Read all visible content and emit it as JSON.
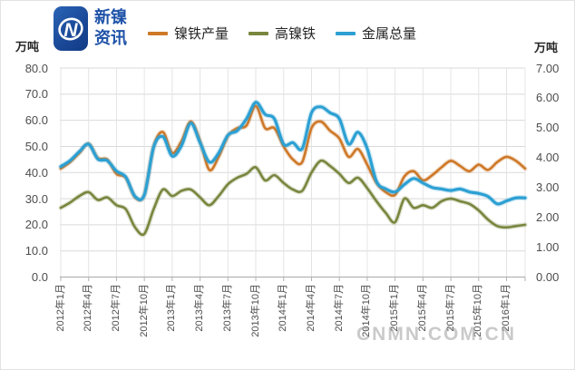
{
  "header": {
    "logo": {
      "title_line1": "新镍",
      "title_line2": "资讯",
      "brand_color": "#1e52a8"
    },
    "unit_left": "万吨",
    "unit_right": "万吨"
  },
  "legend": {
    "items": [
      {
        "key": "nickel-iron-output",
        "label": "镍铁产量",
        "color": "#ce7828"
      },
      {
        "key": "high-nickel-iron",
        "label": "高镍铁",
        "color": "#78863e"
      },
      {
        "key": "total-metal",
        "label": "金属总量",
        "color": "#2ca0d3"
      }
    ]
  },
  "watermark": "CNMN.COM.CN",
  "chart_data": {
    "type": "line",
    "smoothed": true,
    "grid": true,
    "legend_position": "top",
    "x_months": [
      "2012-01",
      "2012-02",
      "2012-03",
      "2012-04",
      "2012-05",
      "2012-06",
      "2012-07",
      "2012-08",
      "2012-09",
      "2012-10",
      "2012-11",
      "2012-12",
      "2013-01",
      "2013-02",
      "2013-03",
      "2013-04",
      "2013-05",
      "2013-06",
      "2013-07",
      "2013-08",
      "2013-09",
      "2013-10",
      "2013-11",
      "2013-12",
      "2014-01",
      "2014-02",
      "2014-03",
      "2014-04",
      "2014-05",
      "2014-06",
      "2014-07",
      "2014-08",
      "2014-09",
      "2014-10",
      "2014-11",
      "2014-12",
      "2015-01",
      "2015-02",
      "2015-03",
      "2015-04",
      "2015-05",
      "2015-06",
      "2015-07",
      "2015-08",
      "2015-09",
      "2015-10",
      "2015-11",
      "2015-12",
      "2016-01",
      "2016-02",
      "2016-03"
    ],
    "x_tick_labels": [
      "2012年1月",
      "2012年4月",
      "2012年7月",
      "2012年10月",
      "2013年1月",
      "2013年4月",
      "2013年7月",
      "2013年10月",
      "2014年1月",
      "2014年4月",
      "2014年7月",
      "2014年10月",
      "2015年1月",
      "2015年4月",
      "2015年7月",
      "2015年10月",
      "2016年1月"
    ],
    "axes": {
      "left": {
        "title": "万吨",
        "min": 0,
        "max": 80,
        "step": 10,
        "format": "0.0"
      },
      "right": {
        "title": "万吨",
        "min": 0,
        "max": 7,
        "step": 1,
        "format": "0.00"
      }
    },
    "series": [
      {
        "key": "nickel-iron-output",
        "name": "镍铁产量",
        "axis": "left",
        "color": "#ce7828",
        "values": [
          41.5,
          44,
          47.5,
          51,
          45.5,
          45,
          39.5,
          38,
          30.5,
          31.5,
          50,
          55.5,
          47.5,
          52,
          59.5,
          52,
          41,
          46,
          54,
          57,
          58,
          65.5,
          57,
          57,
          50,
          45,
          44,
          57,
          59.5,
          56,
          53,
          46,
          49,
          43,
          36,
          32.5,
          31.5,
          38.5,
          40.5,
          37,
          39,
          42,
          44.5,
          42.5,
          40.5,
          43,
          41,
          44,
          46,
          44.5,
          41.5
        ]
      },
      {
        "key": "high-nickel-iron",
        "name": "高镍铁",
        "axis": "left",
        "color": "#78863e",
        "values": [
          26.5,
          28.5,
          31,
          32.5,
          29.5,
          30.5,
          27.5,
          26,
          19,
          16.5,
          26,
          33.5,
          31,
          33,
          33.5,
          30.5,
          27.5,
          31,
          35.5,
          38,
          39.5,
          42,
          37,
          39,
          36,
          33.5,
          33,
          40,
          44.5,
          42.5,
          39.5,
          36,
          38,
          34,
          29,
          24.5,
          21,
          30,
          26.5,
          27.5,
          26.5,
          29,
          30,
          29,
          28,
          25.5,
          22,
          19.5,
          19,
          19.5,
          20
        ]
      },
      {
        "key": "total-metal",
        "name": "金属总量",
        "axis": "right",
        "color": "#2ca0d3",
        "values": [
          3.7,
          3.9,
          4.2,
          4.45,
          3.95,
          3.9,
          3.55,
          3.35,
          2.7,
          2.75,
          4.35,
          4.7,
          4.05,
          4.4,
          5.15,
          4.5,
          3.85,
          4.15,
          4.75,
          4.9,
          5.3,
          5.85,
          5.45,
          5.3,
          4.45,
          4.5,
          4.3,
          5.5,
          5.7,
          5.5,
          5.3,
          4.45,
          4.85,
          4.3,
          3.2,
          2.95,
          2.85,
          3.1,
          3.3,
          3.15,
          3.0,
          2.95,
          2.9,
          2.95,
          2.85,
          2.8,
          2.7,
          2.45,
          2.55,
          2.65,
          2.65
        ]
      }
    ]
  }
}
